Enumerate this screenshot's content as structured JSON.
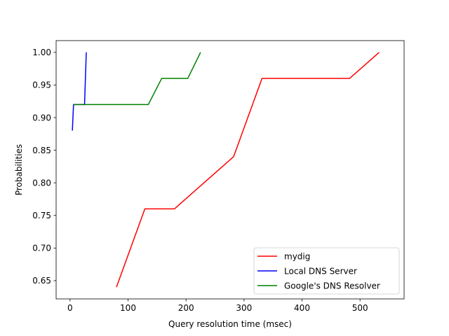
{
  "chart_data": {
    "type": "line",
    "title": "",
    "xlabel": "Query resolution time (msec)",
    "ylabel": "Probabilities",
    "xlim": [
      -24,
      576
    ],
    "ylim": [
      0.622,
      1.018
    ],
    "xticks": [
      0,
      100,
      200,
      300,
      400,
      500
    ],
    "yticks": [
      0.65,
      0.7,
      0.75,
      0.8,
      0.85,
      0.9,
      0.95,
      1.0
    ],
    "xtick_labels": [
      "0",
      "100",
      "200",
      "300",
      "400",
      "500"
    ],
    "ytick_labels": [
      "0.65",
      "0.70",
      "0.75",
      "0.80",
      "0.85",
      "0.90",
      "0.95",
      "1.00"
    ],
    "grid": false,
    "legend_position": "lower-right",
    "series": [
      {
        "name": "mydig",
        "color": "#ff0000",
        "x": [
          80,
          129,
          180,
          282,
          331,
          482,
          533
        ],
        "y": [
          0.64,
          0.76,
          0.76,
          0.84,
          0.96,
          0.96,
          1.0
        ]
      },
      {
        "name": "Local DNS Server",
        "color": "#0000ff",
        "x": [
          4,
          6,
          25,
          28
        ],
        "y": [
          0.88,
          0.92,
          0.92,
          1.0
        ]
      },
      {
        "name": "Google's DNS Resolver",
        "color": "#008000",
        "x": [
          6,
          135,
          158,
          203,
          225
        ],
        "y": [
          0.92,
          0.92,
          0.96,
          0.96,
          1.0
        ]
      }
    ]
  }
}
